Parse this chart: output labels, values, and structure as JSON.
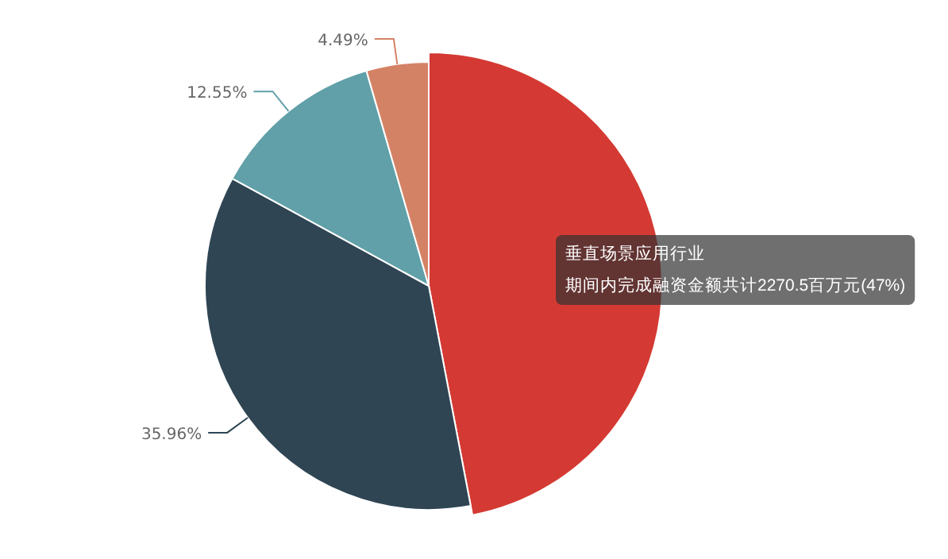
{
  "chart_data": {
    "type": "pie",
    "categories": [
      "垂直场景应用行业",
      null,
      null,
      null
    ],
    "values": [
      47.0,
      35.96,
      12.55,
      4.49
    ],
    "colors": [
      "#d43a33",
      "#2f4554",
      "#61a0a8",
      "#d48265"
    ],
    "value_labels": [
      null,
      "35.96%",
      "12.55%",
      "4.49%"
    ],
    "annotations": [
      "期间内完成融资金额共计2270.5百万元(47%)"
    ]
  }
}
